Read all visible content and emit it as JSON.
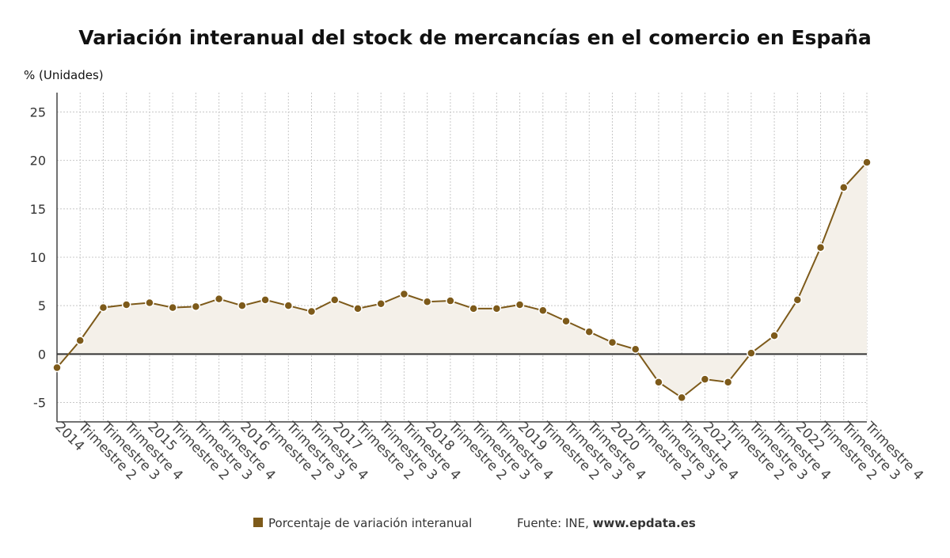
{
  "chart_data": {
    "type": "area",
    "title": "Variación interanual del stock de mercancías en el comercio en España",
    "ylabel": "% (Unidades)",
    "ylim": [
      -7,
      27
    ],
    "yticks": [
      25,
      20,
      15,
      10,
      5,
      0,
      -5
    ],
    "categories": [
      "2014",
      "Trimestre 2",
      "Trimestre 3",
      "Trimestre 4",
      "2015",
      "Trimestre 2",
      "Trimestre 3",
      "Trimestre 4",
      "2016",
      "Trimestre 2",
      "Trimestre 3",
      "Trimestre 4",
      "2017",
      "Trimestre 2",
      "Trimestre 3",
      "Trimestre 4",
      "2018",
      "Trimestre 2",
      "Trimestre 3",
      "Trimestre 4",
      "2019",
      "Trimestre 2",
      "Trimestre 3",
      "Trimestre 4",
      "2020",
      "Trimestre 2",
      "Trimestre 3",
      "Trimestre 4",
      "2021",
      "Trimestre 2",
      "Trimestre 3",
      "Trimestre 4",
      "2022",
      "Trimestre 2",
      "Trimestre 3",
      "Trimestre 4"
    ],
    "series": [
      {
        "name": "Porcentaje de variación interanual",
        "color": "#7d5a1a",
        "values": [
          -1.4,
          1.4,
          4.8,
          5.1,
          5.3,
          4.8,
          4.9,
          5.7,
          5.0,
          5.6,
          5.0,
          4.4,
          5.6,
          4.7,
          5.2,
          6.2,
          5.4,
          5.5,
          4.7,
          4.7,
          5.1,
          4.5,
          3.4,
          2.3,
          1.2,
          0.5,
          -2.9,
          -4.5,
          -2.6,
          -2.9,
          0.1,
          1.9,
          5.6,
          11.0,
          17.2,
          19.8
        ]
      }
    ],
    "grid": true,
    "legend_position": "bottom"
  },
  "source": {
    "label": "Fuente: INE, ",
    "site": "www.epdata.es"
  },
  "colors": {
    "line": "#7d5a1a",
    "fill": "#f4f0e9",
    "grid": "#c8c8c8",
    "zero_line": "#333333"
  }
}
